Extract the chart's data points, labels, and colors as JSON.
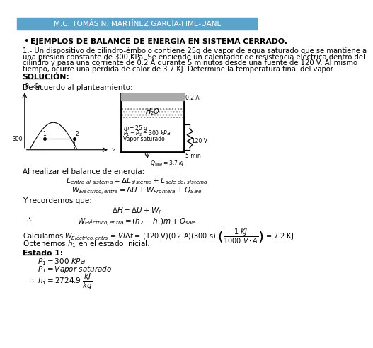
{
  "header_text": "M.C. TOMÁS N. MARTÍNEZ GARCÍA-FIME-UANL",
  "header_bg": "#5ba3c9",
  "header_text_color": "#ffffff",
  "title_bullet": "EJEMPLOS DE BALANCE DE ENERGÍA EN SISTEMA CERRADO.",
  "problem_line1": "1.- Un dispositivo de cilindro-émbolo contiene 25g de vapor de agua saturado que se mantiene a",
  "problem_line2": "una presión constante de 300 KPa. Se enciende un calentador de resistencia eléctrica dentro del",
  "problem_line3": "cilindro y pasa una corriente de 0.2 A durante 5 minutos desde una fuente de 120 V. Al mismo",
  "problem_line4": "tiempo, ocurre una pérdida de calor de 3.7 KJ. Determine la temperatura final del vapor.",
  "solucion_label": "SOLUCIÓN:",
  "planteamiento_text": "De acuerdo al planteamiento:",
  "balance_intro": "Al realizar el balance de energía:",
  "recordemos_text": "Y recordemos que:",
  "arrow_text": "∴",
  "bg_color": "#ffffff",
  "text_color": "#000000"
}
